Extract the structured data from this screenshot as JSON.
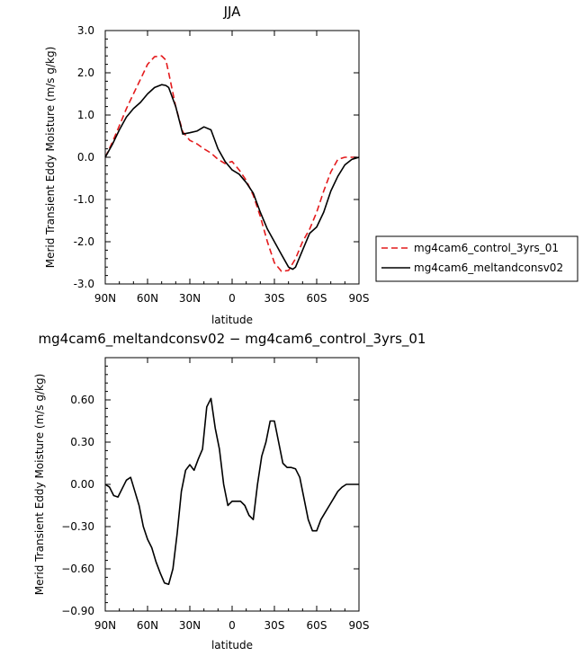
{
  "chart_data": [
    {
      "type": "line",
      "title": "JJA",
      "xlabel": "latitude",
      "ylabel": "Merid Transient Eddy Moisture (m/s g/kg)",
      "xlim": [
        90,
        -90
      ],
      "ylim": [
        -3.0,
        3.0
      ],
      "x_ticks": [
        90,
        60,
        30,
        0,
        -30,
        -60,
        -90
      ],
      "x_tick_labels": [
        "90N",
        "60N",
        "30N",
        "0",
        "30S",
        "60S",
        "90S"
      ],
      "y_ticks": [
        3.0,
        2.0,
        1.0,
        0.0,
        -1.0,
        -2.0,
        -3.0
      ],
      "y_tick_labels": [
        "3.0",
        "2.0",
        "1.0",
        "0.0",
        "-1.0",
        "-2.0",
        "-3.0"
      ],
      "grid": false,
      "legend_position": "right",
      "series": [
        {
          "name": "mg4cam6_control_3yrs_01",
          "color": "#e41a1c",
          "dash": "dashed",
          "x": [
            90,
            85,
            80,
            75,
            70,
            65,
            60,
            55,
            50,
            47,
            45,
            40,
            35,
            30,
            25,
            20,
            15,
            10,
            5,
            0,
            -5,
            -10,
            -15,
            -20,
            -25,
            -30,
            -35,
            -40,
            -45,
            -50,
            -55,
            -60,
            -65,
            -70,
            -75,
            -80,
            -85,
            -90
          ],
          "y": [
            0.0,
            0.35,
            0.75,
            1.15,
            1.5,
            1.85,
            2.2,
            2.38,
            2.4,
            2.3,
            2.0,
            1.2,
            0.6,
            0.4,
            0.32,
            0.2,
            0.1,
            -0.05,
            -0.15,
            -0.1,
            -0.3,
            -0.55,
            -0.9,
            -1.4,
            -2.0,
            -2.5,
            -2.7,
            -2.68,
            -2.4,
            -2.0,
            -1.7,
            -1.3,
            -0.8,
            -0.35,
            -0.05,
            0.0,
            0.0,
            0.0
          ]
        },
        {
          "name": "mg4cam6_meltandconsv02",
          "color": "#000000",
          "dash": "solid",
          "x": [
            90,
            85,
            80,
            75,
            70,
            65,
            60,
            55,
            50,
            47,
            45,
            40,
            35,
            30,
            25,
            20,
            15,
            10,
            5,
            0,
            -5,
            -10,
            -15,
            -20,
            -25,
            -30,
            -35,
            -40,
            -43,
            -45,
            -50,
            -55,
            -60,
            -65,
            -70,
            -75,
            -80,
            -85,
            -90
          ],
          "y": [
            0.0,
            0.3,
            0.65,
            0.95,
            1.15,
            1.3,
            1.5,
            1.65,
            1.72,
            1.7,
            1.65,
            1.2,
            0.55,
            0.58,
            0.62,
            0.72,
            0.65,
            0.2,
            -0.1,
            -0.3,
            -0.4,
            -0.6,
            -0.85,
            -1.3,
            -1.7,
            -2.0,
            -2.3,
            -2.6,
            -2.65,
            -2.6,
            -2.2,
            -1.8,
            -1.65,
            -1.3,
            -0.8,
            -0.45,
            -0.18,
            -0.05,
            0.0
          ]
        }
      ]
    },
    {
      "type": "line",
      "title": "mg4cam6_meltandconsv02 − mg4cam6_control_3yrs_01",
      "xlabel": "latitude",
      "ylabel": "Merid Transient Eddy Moisture (m/s g/kg)",
      "xlim": [
        90,
        -90
      ],
      "ylim": [
        -0.9,
        0.9
      ],
      "x_ticks": [
        90,
        60,
        30,
        0,
        -30,
        -60,
        -90
      ],
      "x_tick_labels": [
        "90N",
        "60N",
        "30N",
        "0",
        "30S",
        "60S",
        "90S"
      ],
      "y_ticks": [
        0.6,
        0.3,
        0.0,
        -0.3,
        -0.6,
        -0.9
      ],
      "y_tick_labels": [
        "0.60",
        "0.30",
        "0.00",
        "−0.30",
        "−0.60",
        "−0.90"
      ],
      "grid": false,
      "series": [
        {
          "color": "#000000",
          "dash": "solid",
          "x": [
            90,
            87,
            84,
            81,
            78,
            75,
            72,
            69,
            66,
            63,
            60,
            57,
            54,
            51,
            48,
            45,
            42,
            39,
            36,
            33,
            30,
            27,
            24,
            21,
            18,
            15,
            12,
            9,
            6,
            3,
            0,
            -3,
            -6,
            -9,
            -12,
            -15,
            -18,
            -21,
            -24,
            -27,
            -30,
            -33,
            -36,
            -39,
            -42,
            -45,
            -48,
            -51,
            -54,
            -57,
            -60,
            -63,
            -66,
            -69,
            -72,
            -75,
            -78,
            -81,
            -84,
            -87,
            -90
          ],
          "y": [
            0.0,
            -0.02,
            -0.08,
            -0.09,
            -0.03,
            0.03,
            0.05,
            -0.05,
            -0.15,
            -0.3,
            -0.39,
            -0.45,
            -0.55,
            -0.63,
            -0.7,
            -0.71,
            -0.6,
            -0.35,
            -0.05,
            0.1,
            0.14,
            0.1,
            0.18,
            0.25,
            0.55,
            0.61,
            0.4,
            0.25,
            0.0,
            -0.15,
            -0.12,
            -0.12,
            -0.12,
            -0.15,
            -0.22,
            -0.25,
            0.0,
            0.2,
            0.3,
            0.45,
            0.45,
            0.3,
            0.15,
            0.12,
            0.12,
            0.11,
            0.05,
            -0.1,
            -0.25,
            -0.33,
            -0.33,
            -0.25,
            -0.2,
            -0.15,
            -0.1,
            -0.05,
            -0.02,
            0.0,
            0.0,
            0.0,
            0.0
          ]
        }
      ]
    }
  ]
}
